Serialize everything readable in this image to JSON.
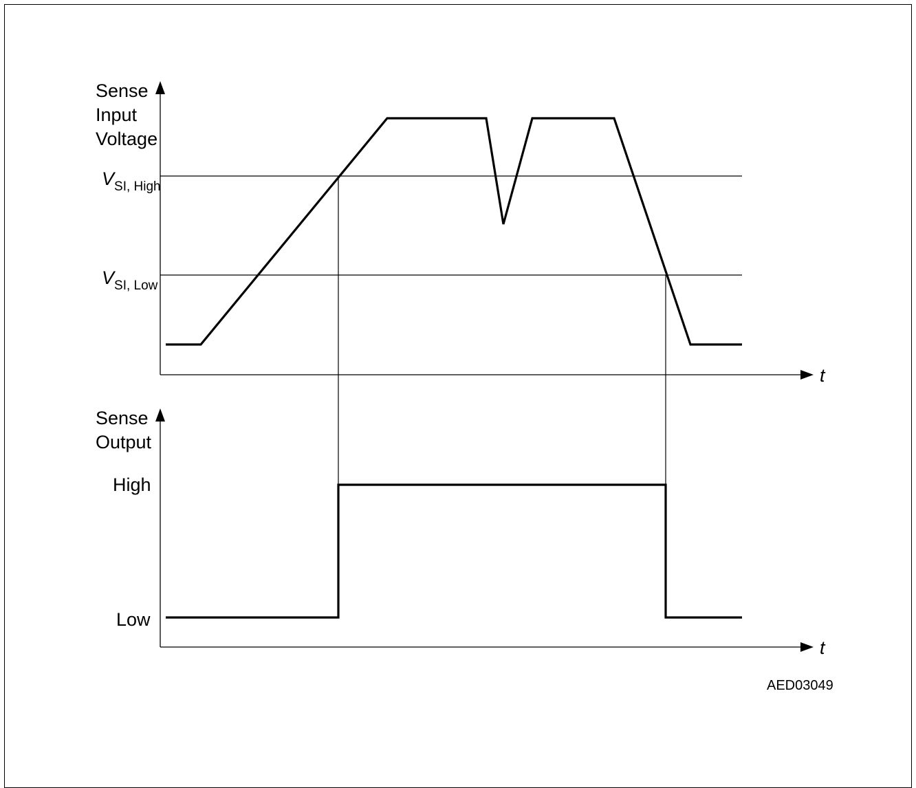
{
  "top_plot": {
    "y_label_lines": [
      "Sense",
      "Input",
      "Voltage"
    ],
    "threshold_high": {
      "main": "V",
      "sub": "SI, High"
    },
    "threshold_low": {
      "main": "V",
      "sub": "SI, Low"
    },
    "x_axis_label": "t"
  },
  "bottom_plot": {
    "y_label_lines": [
      "Sense",
      "Output"
    ],
    "level_high": "High",
    "level_low": "Low",
    "x_axis_label": "t"
  },
  "figure_code": "AED03049"
}
